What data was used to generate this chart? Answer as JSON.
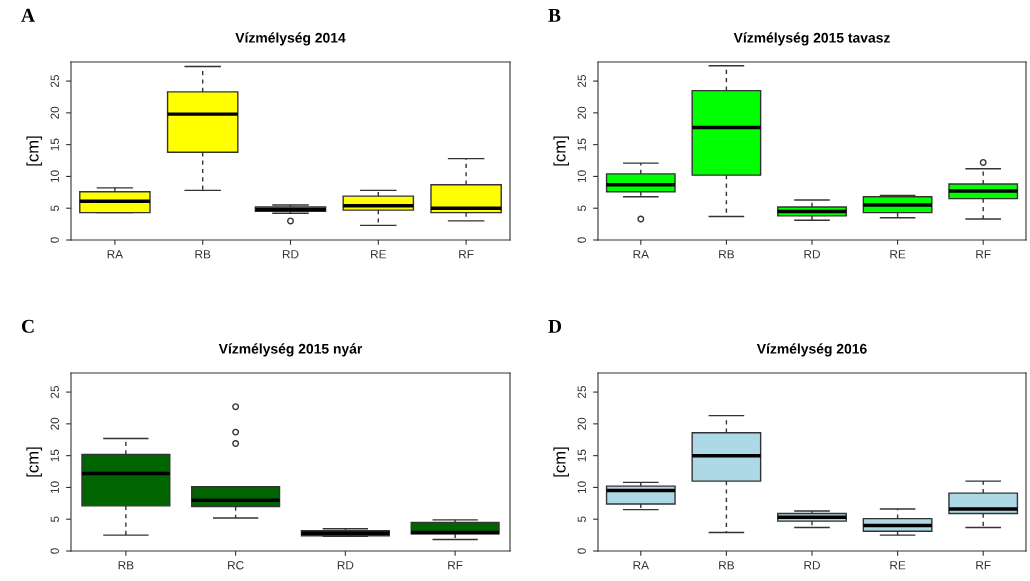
{
  "chart_data": [
    {
      "type": "box",
      "title": "Vízmélység 2014",
      "ylabel": "[cm]",
      "annotations": [
        "A"
      ],
      "categories": [
        "RA",
        "RB",
        "RD",
        "RE",
        "RF"
      ],
      "ylim": [
        0,
        28
      ],
      "yticks": [
        0,
        5,
        10,
        15,
        20,
        25
      ],
      "series": [
        {
          "color": "#ffff00",
          "boxes": [
            {
              "low": 4.3,
              "q1": 4.3,
              "median": 6.1,
              "q3": 7.6,
              "high": 8.2
            },
            {
              "low": 7.8,
              "q1": 13.8,
              "median": 19.8,
              "q3": 23.3,
              "high": 27.3
            },
            {
              "low": 4.2,
              "q1": 4.5,
              "median": 4.8,
              "q3": 5.2,
              "high": 5.5,
              "outliers": [
                3.0
              ]
            },
            {
              "low": 2.3,
              "q1": 4.7,
              "median": 5.4,
              "q3": 6.9,
              "high": 7.8
            },
            {
              "low": 3.0,
              "q1": 4.3,
              "median": 5.0,
              "q3": 8.7,
              "high": 12.8
            }
          ]
        }
      ]
    },
    {
      "type": "box",
      "title": "Vízmélység 2015 tavasz",
      "ylabel": "[cm]",
      "annotations": [
        "B"
      ],
      "categories": [
        "RA",
        "RB",
        "RD",
        "RE",
        "RF"
      ],
      "ylim": [
        0,
        28
      ],
      "yticks": [
        0,
        5,
        10,
        15,
        20,
        25
      ],
      "series": [
        {
          "color": "#00ff00",
          "boxes": [
            {
              "low": 6.8,
              "q1": 7.6,
              "median": 8.7,
              "q3": 10.4,
              "high": 12.1,
              "outliers": [
                3.3
              ]
            },
            {
              "low": 3.7,
              "q1": 10.2,
              "median": 17.7,
              "q3": 23.5,
              "high": 27.4
            },
            {
              "low": 3.1,
              "q1": 3.8,
              "median": 4.5,
              "q3": 5.2,
              "high": 6.3
            },
            {
              "low": 3.5,
              "q1": 4.3,
              "median": 5.5,
              "q3": 6.8,
              "high": 7.0
            },
            {
              "low": 3.3,
              "q1": 6.5,
              "median": 7.7,
              "q3": 8.8,
              "high": 11.2,
              "outliers": [
                12.2
              ]
            }
          ]
        }
      ]
    },
    {
      "type": "box",
      "title": "Vízmélység 2015 nyár",
      "ylabel": "[cm]",
      "annotations": [
        "C"
      ],
      "categories": [
        "RB",
        "RC",
        "RD",
        "RF"
      ],
      "ylim": [
        0,
        28
      ],
      "yticks": [
        0,
        5,
        10,
        15,
        20,
        25
      ],
      "series": [
        {
          "color": "#006400",
          "boxes": [
            {
              "low": 2.5,
              "q1": 7.1,
              "median": 12.2,
              "q3": 15.2,
              "high": 17.7
            },
            {
              "low": 5.2,
              "q1": 7.0,
              "median": 8.0,
              "q3": 10.1,
              "high": 10.1,
              "outliers": [
                16.9,
                18.7,
                22.7
              ]
            },
            {
              "low": 2.3,
              "q1": 2.4,
              "median": 2.8,
              "q3": 3.2,
              "high": 3.5
            },
            {
              "low": 1.8,
              "q1": 2.7,
              "median": 2.9,
              "q3": 4.5,
              "high": 4.9
            }
          ]
        }
      ]
    },
    {
      "type": "box",
      "title": "Vízmélység 2016",
      "ylabel": "[cm]",
      "annotations": [
        "D"
      ],
      "categories": [
        "RA",
        "RB",
        "RD",
        "RE",
        "RF"
      ],
      "ylim": [
        0,
        28
      ],
      "yticks": [
        0,
        5,
        10,
        15,
        20,
        25
      ],
      "series": [
        {
          "color": "#add8e6",
          "boxes": [
            {
              "low": 6.5,
              "q1": 7.4,
              "median": 9.5,
              "q3": 10.2,
              "high": 10.8
            },
            {
              "low": 2.9,
              "q1": 11.0,
              "median": 15.0,
              "q3": 18.6,
              "high": 21.3
            },
            {
              "low": 3.7,
              "q1": 4.7,
              "median": 5.3,
              "q3": 5.9,
              "high": 6.3
            },
            {
              "low": 2.5,
              "q1": 3.1,
              "median": 4.0,
              "q3": 5.1,
              "high": 6.6
            },
            {
              "low": 3.7,
              "q1": 5.9,
              "median": 6.6,
              "q3": 9.1,
              "high": 11.0
            }
          ]
        }
      ]
    }
  ]
}
